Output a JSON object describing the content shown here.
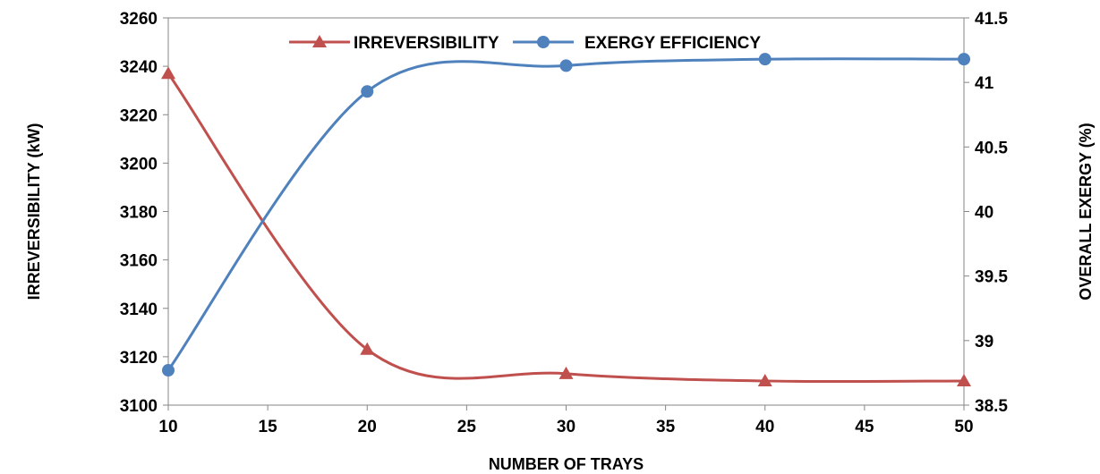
{
  "chart_data": {
    "type": "line",
    "xlabel": "NUMBER OF TRAYS",
    "ylabel_left": "IRREVERSIBILITY (kW)",
    "ylabel_right": "OVERALL EXERGY (%)",
    "xlim": [
      10,
      50
    ],
    "ylim_left": [
      3100,
      3260
    ],
    "ylim_right": [
      38.5,
      41.5
    ],
    "x_ticks": [
      "10",
      "15",
      "20",
      "25",
      "30",
      "35",
      "40",
      "45",
      "50"
    ],
    "y_left_ticks": [
      "3100",
      "3120",
      "3140",
      "3160",
      "3180",
      "3200",
      "3220",
      "3240",
      "3260"
    ],
    "y_right_ticks": [
      "38.5",
      "39",
      "39.5",
      "40",
      "40.5",
      "41",
      "41.5"
    ],
    "grid": false,
    "legend_position": "top-center",
    "series": [
      {
        "name": "IRREVERSIBILITY",
        "axis": "left",
        "color": "#c0504d",
        "marker": "triangle",
        "x": [
          10,
          20,
          30,
          40,
          50
        ],
        "values": [
          3237,
          3123,
          3113,
          3110,
          3110
        ]
      },
      {
        "name": "EXERGY EFFICIENCY",
        "axis": "right",
        "color": "#4f81bd",
        "marker": "circle",
        "x": [
          10,
          20,
          30,
          40,
          50
        ],
        "values": [
          38.77,
          40.93,
          41.13,
          41.18,
          41.18
        ]
      }
    ]
  }
}
